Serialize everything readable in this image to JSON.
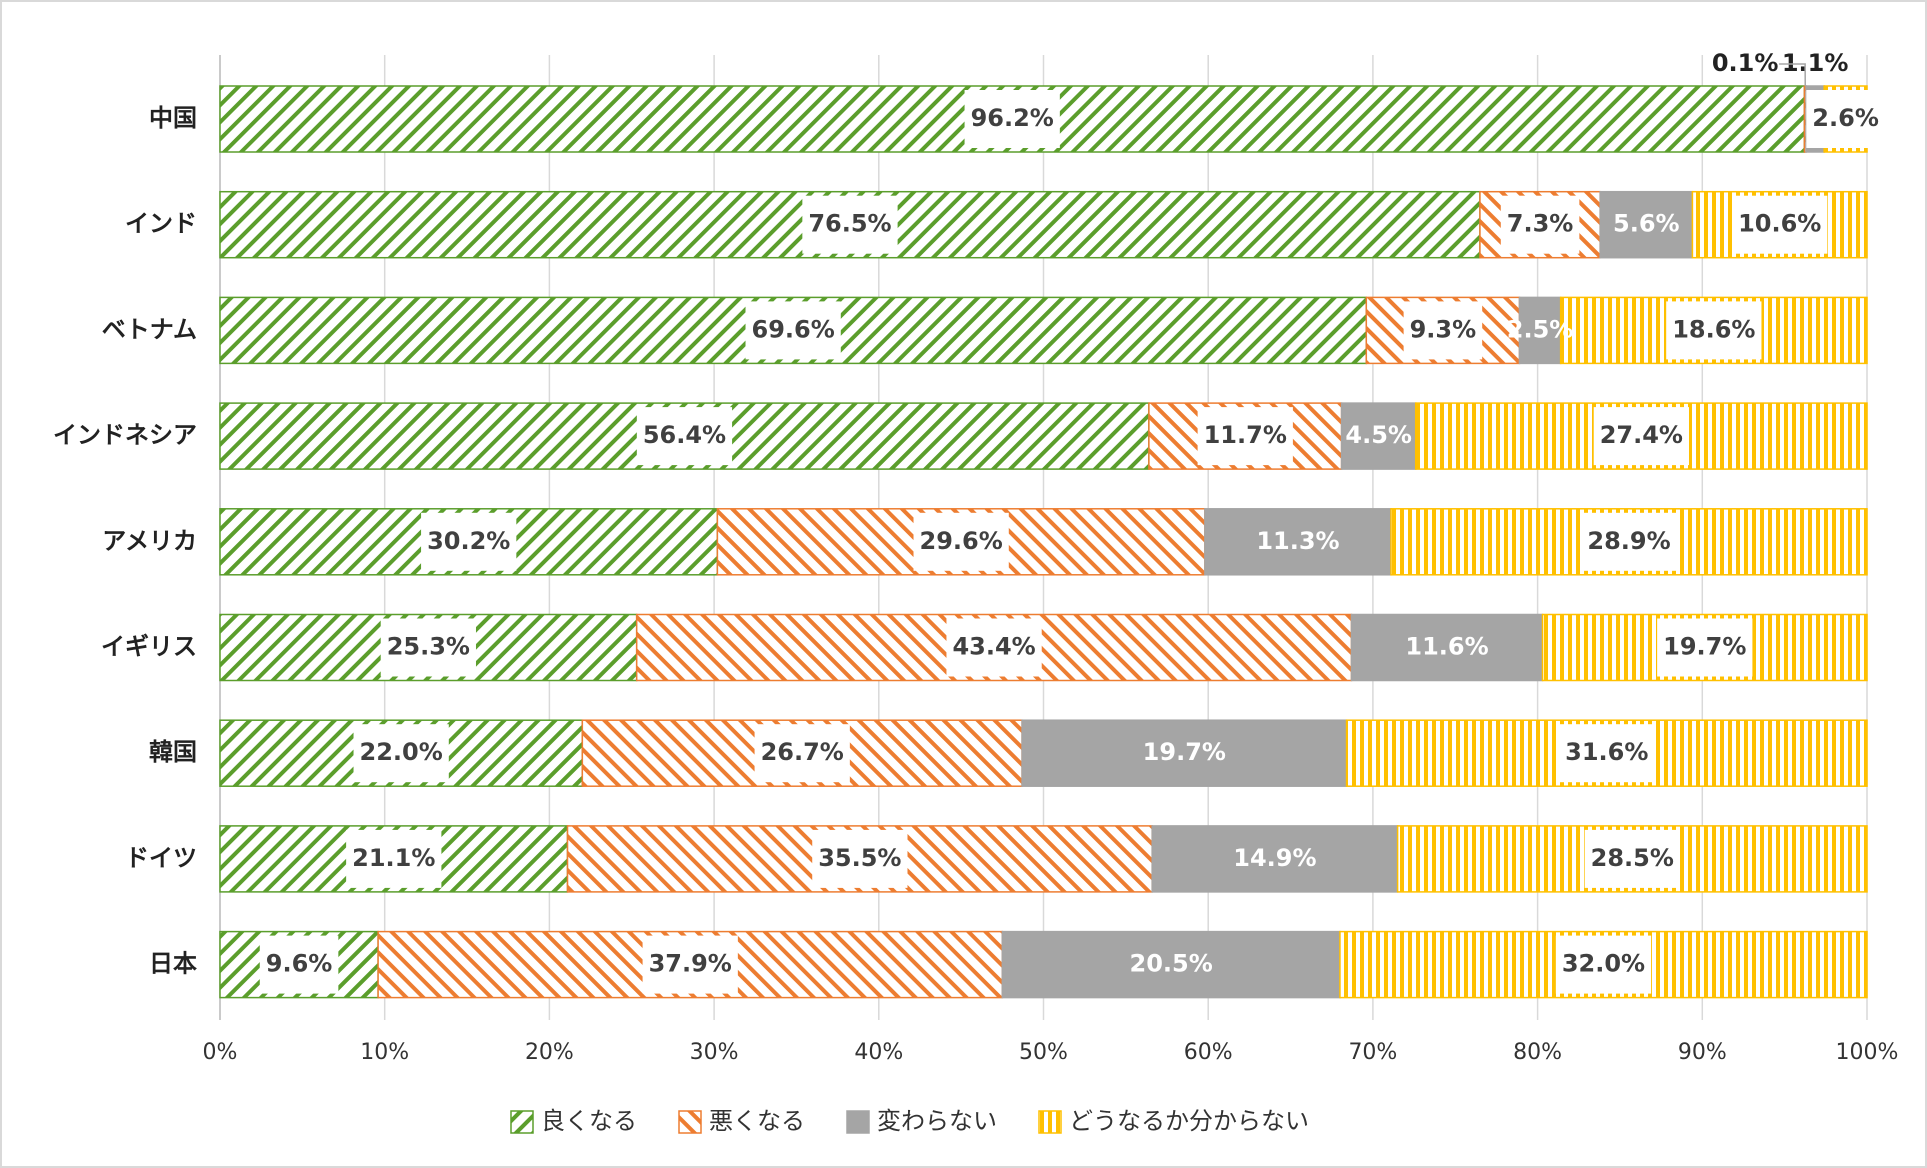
{
  "chart_data": {
    "type": "stacked-bar-horizontal",
    "categories": [
      "中国",
      "インド",
      "ベトナム",
      "インドネシア",
      "アメリカ",
      "イギリス",
      "韓国",
      "ドイツ",
      "日本"
    ],
    "series": [
      {
        "name": "良くなる",
        "color": "#5b9e2c",
        "values": [
          96.2,
          76.5,
          69.6,
          56.4,
          30.2,
          25.3,
          22.0,
          21.1,
          9.6
        ],
        "value_labels": [
          "96.2%",
          "76.5%",
          "69.6%",
          "56.4%",
          "30.2%",
          "25.3%",
          "22.0%",
          "21.1%",
          "9.6%"
        ]
      },
      {
        "name": "悪くなる",
        "color": "#ed7d31",
        "values": [
          0.1,
          7.3,
          9.3,
          11.7,
          29.6,
          43.4,
          26.7,
          35.5,
          37.9
        ],
        "value_labels": [
          "0.1%",
          "7.3%",
          "9.3%",
          "11.7%",
          "29.6%",
          "43.4%",
          "26.7%",
          "35.5%",
          "37.9%"
        ]
      },
      {
        "name": "変わらない",
        "color": "#a5a5a5",
        "values": [
          1.1,
          5.6,
          2.5,
          4.5,
          11.3,
          11.6,
          19.7,
          14.9,
          20.5
        ],
        "value_labels": [
          "1.1%",
          "5.6%",
          "2.5%",
          "4.5%",
          "11.3%",
          "11.6%",
          "19.7%",
          "14.9%",
          "20.5%"
        ]
      },
      {
        "name": "どうなるか分からない",
        "color": "#ffc000",
        "values": [
          2.6,
          10.6,
          18.6,
          27.4,
          28.9,
          19.7,
          31.6,
          28.5,
          32.0
        ],
        "value_labels": [
          "2.6%",
          "10.6%",
          "18.6%",
          "27.4%",
          "28.9%",
          "19.7%",
          "31.6%",
          "28.5%",
          "32.0%"
        ]
      }
    ],
    "xlim": [
      0,
      100
    ],
    "xticks": [
      {
        "value": 0,
        "label": "0%"
      },
      {
        "value": 10,
        "label": "10%"
      },
      {
        "value": 20,
        "label": "20%"
      },
      {
        "value": 30,
        "label": "30%"
      },
      {
        "value": 40,
        "label": "40%"
      },
      {
        "value": 50,
        "label": "50%"
      },
      {
        "value": 60,
        "label": "60%"
      },
      {
        "value": 70,
        "label": "70%"
      },
      {
        "value": 80,
        "label": "80%"
      },
      {
        "value": 90,
        "label": "90%"
      },
      {
        "value": 100,
        "label": "100%"
      }
    ],
    "grid": true,
    "legend": "bottom"
  }
}
